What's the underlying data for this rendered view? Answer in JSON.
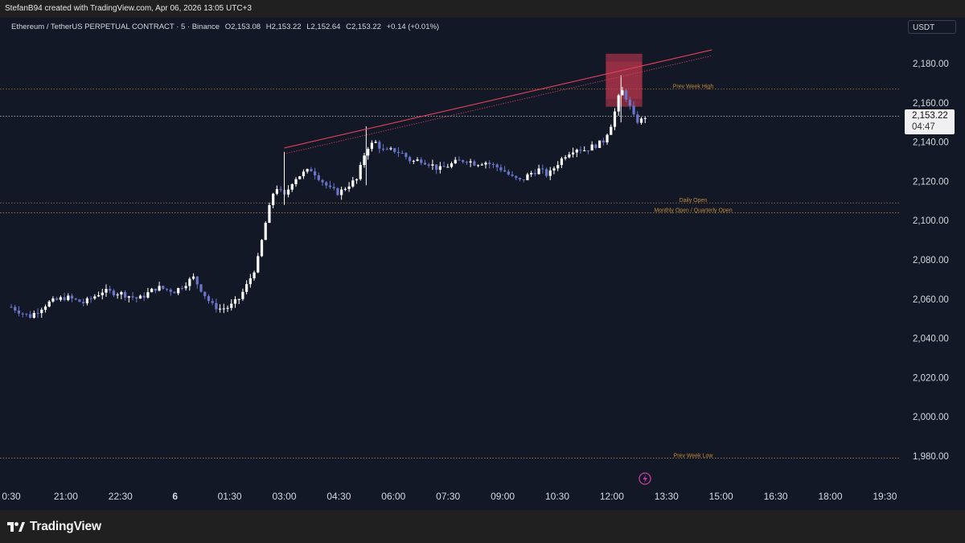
{
  "header": {
    "attribution": "StefanB94 created with TradingView.com, Apr 06, 2026 13:05 UTC+3"
  },
  "symbol": {
    "name": "Ethereum / TetherUS PERPETUAL CONTRACT · 5 · Binance",
    "open": "O2,153.08",
    "high": "H2,153.22",
    "low": "L2,152.64",
    "close": "C2,153.22",
    "change": "+0.14 (+0.01%)"
  },
  "currency": "USDT",
  "price_tag": {
    "price": "2,153.22",
    "countdown": "04:47"
  },
  "footer": {
    "brand": "TradingView"
  },
  "colors": {
    "background": "#121826",
    "candle_up": "#ffffff",
    "candle_down": "#6a74c8",
    "trendline": "#e8405c",
    "level_line": "#c58a3a",
    "zone": "#d63a52"
  },
  "chart_data": {
    "type": "candlestick",
    "x_ticks": [
      "0:30",
      "21:00",
      "22:30",
      "6",
      "01:30",
      "03:00",
      "04:30",
      "06:00",
      "07:30",
      "09:00",
      "10:30",
      "12:00",
      "13:30",
      "15:00",
      "16:30",
      "18:00",
      "19:30"
    ],
    "y_ticks": [
      "2,180.00",
      "2,160.00",
      "2,140.00",
      "2,120.00",
      "2,100.00",
      "2,080.00",
      "2,060.00",
      "2,040.00",
      "2,020.00",
      "2,000.00",
      "1,980.00"
    ],
    "ylim": [
      1974,
      2196
    ],
    "current_price": 2153.22,
    "levels": [
      {
        "label": "Prev Week High",
        "value": 2167
      },
      {
        "label": "Daily Open",
        "value": 2109
      },
      {
        "label": "Monthly Open / Quarterly Open",
        "value": 2104
      },
      {
        "label": "Prev Week Low",
        "value": 1979
      }
    ],
    "trendline": {
      "from": {
        "time": "03:00",
        "value": 2137
      },
      "to": {
        "time": "14:45",
        "value": 2187
      }
    },
    "trendline_dotted": {
      "from": {
        "time": "03:00",
        "value": 2134
      },
      "to": {
        "time": "14:45",
        "value": 2184
      }
    },
    "supply_zone": {
      "from": "11:50",
      "to": "12:50",
      "top": 2185,
      "bottom": 2158
    },
    "price_path": [
      [
        "19:30",
        2056
      ],
      [
        "20:00",
        2051
      ],
      [
        "20:30",
        2058
      ],
      [
        "21:00",
        2061
      ],
      [
        "21:30",
        2058
      ],
      [
        "22:00",
        2064
      ],
      [
        "22:30",
        2063
      ],
      [
        "23:00",
        2060
      ],
      [
        "23:30",
        2066
      ],
      [
        "00:00",
        2064
      ],
      [
        "00:30",
        2071
      ],
      [
        "01:00",
        2057
      ],
      [
        "01:15",
        2055
      ],
      [
        "01:30",
        2056
      ],
      [
        "01:45",
        2060
      ],
      [
        "02:00",
        2068
      ],
      [
        "02:15",
        2078
      ],
      [
        "02:30",
        2100
      ],
      [
        "02:45",
        2118
      ],
      [
        "03:00",
        2112
      ],
      [
        "03:15",
        2121
      ],
      [
        "03:30",
        2124
      ],
      [
        "03:45",
        2126
      ],
      [
        "04:00",
        2121
      ],
      [
        "04:15",
        2116
      ],
      [
        "04:30",
        2114
      ],
      [
        "04:45",
        2118
      ],
      [
        "05:00",
        2121
      ],
      [
        "05:15",
        2137
      ],
      [
        "05:30",
        2140
      ],
      [
        "05:45",
        2135
      ],
      [
        "06:00",
        2136
      ],
      [
        "06:15",
        2134
      ],
      [
        "06:30",
        2130
      ],
      [
        "06:45",
        2131
      ],
      [
        "07:00",
        2129
      ],
      [
        "07:15",
        2126
      ],
      [
        "07:30",
        2128
      ],
      [
        "07:45",
        2130
      ],
      [
        "08:00",
        2131
      ],
      [
        "08:15",
        2129
      ],
      [
        "08:30",
        2130
      ],
      [
        "08:45",
        2128
      ],
      [
        "09:00",
        2126
      ],
      [
        "09:15",
        2122
      ],
      [
        "09:30",
        2120
      ],
      [
        "09:45",
        2124
      ],
      [
        "10:00",
        2126
      ],
      [
        "10:15",
        2123
      ],
      [
        "10:30",
        2129
      ],
      [
        "10:45",
        2134
      ],
      [
        "11:00",
        2137
      ],
      [
        "11:15",
        2136
      ],
      [
        "11:30",
        2138
      ],
      [
        "11:45",
        2140
      ],
      [
        "12:00",
        2150
      ],
      [
        "12:15",
        2167
      ],
      [
        "12:25",
        2162
      ],
      [
        "12:35",
        2153
      ],
      [
        "12:45",
        2150
      ],
      [
        "12:55",
        2153
      ]
    ]
  }
}
